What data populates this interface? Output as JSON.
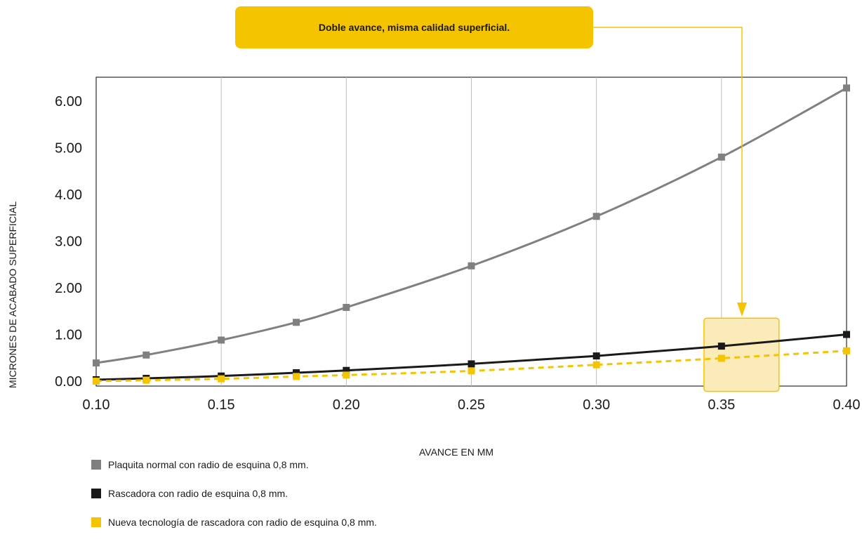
{
  "callout": {
    "text": "Doble avance, misma calidad superficial."
  },
  "chart_data": {
    "type": "line",
    "xlabel": "AVANCE EN MM",
    "ylabel": "MICRONES DE ACABADO SUPERFICIAL",
    "xlim": [
      0.1,
      0.4
    ],
    "ylim": [
      0.0,
      6.5
    ],
    "x_ticks": [
      "0.10",
      "0.15",
      "0.20",
      "0.25",
      "0.30",
      "0.35",
      "0.40"
    ],
    "y_ticks": [
      "0.00",
      "1.00",
      "2.00",
      "3.00",
      "4.00",
      "5.00",
      "6.00"
    ],
    "x_tick_values": [
      0.1,
      0.15,
      0.2,
      0.25,
      0.3,
      0.35,
      0.4
    ],
    "y_tick_values": [
      0,
      1,
      2,
      3,
      4,
      5,
      6
    ],
    "grid": "vertical",
    "legend_position": "bottom-left",
    "highlight": {
      "x_range": [
        0.343,
        0.373
      ],
      "y_range": [
        -0.22,
        1.35
      ]
    },
    "series": [
      {
        "name": "Plaquita normal con radio de esquina 0,8 mm.",
        "color": "#808080",
        "style": "solid",
        "x": [
          0.1,
          0.12,
          0.15,
          0.18,
          0.2,
          0.25,
          0.3,
          0.35,
          0.4
        ],
        "values": [
          0.39,
          0.56,
          0.88,
          1.26,
          1.58,
          2.47,
          3.53,
          4.8,
          6.28
        ]
      },
      {
        "name": "Rascadora con radio de esquina 0,8 mm.",
        "color": "#1a1a1a",
        "style": "solid",
        "x": [
          0.1,
          0.12,
          0.15,
          0.18,
          0.2,
          0.25,
          0.3,
          0.35,
          0.4
        ],
        "values": [
          0.03,
          0.06,
          0.11,
          0.18,
          0.23,
          0.37,
          0.54,
          0.75,
          1.0
        ]
      },
      {
        "name": "Nueva tecnología de rascadora con radio de esquina 0,8 mm.",
        "color": "#f5c400",
        "style": "dashed",
        "x": [
          0.1,
          0.12,
          0.15,
          0.18,
          0.2,
          0.25,
          0.3,
          0.35,
          0.4
        ],
        "values": [
          0.0,
          0.02,
          0.05,
          0.1,
          0.13,
          0.22,
          0.35,
          0.49,
          0.65
        ]
      }
    ]
  }
}
